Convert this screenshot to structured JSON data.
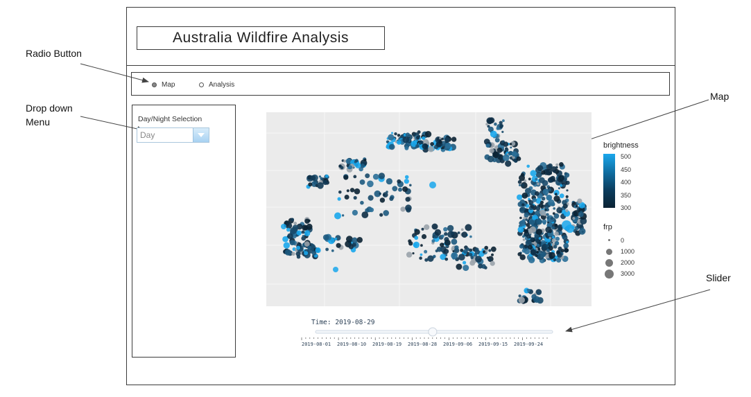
{
  "app": {
    "title": "Australia Wildfire Analysis"
  },
  "nav": {
    "radios": [
      {
        "label": "Map",
        "selected": true
      },
      {
        "label": "Analysis",
        "selected": false
      }
    ]
  },
  "sidebar": {
    "daynight_label": "Day/Night Selection",
    "daynight_value": "Day"
  },
  "annotations": {
    "radio": "Radio Button",
    "dropdown_line1": "Drop down",
    "dropdown_line2": "Menu",
    "map": "Map",
    "slider": "Slider"
  },
  "legend": {
    "brightness_title": "brightness",
    "brightness_ticks": [
      "500",
      "450",
      "400",
      "350",
      "300"
    ],
    "frp_title": "frp",
    "frp_ticks": [
      "0",
      "1000",
      "2000",
      "3000"
    ],
    "colors": {
      "high": "#1aa7ec",
      "low": "#0b2233"
    }
  },
  "slider": {
    "label": "Time: 2019-08-29",
    "value": "2019-08-29",
    "ticks": [
      "2019-08-01",
      "2019-08-10",
      "2019-08-19",
      "2019-08-28",
      "2019-09-06",
      "2019-09-15",
      "2019-09-24"
    ]
  }
}
